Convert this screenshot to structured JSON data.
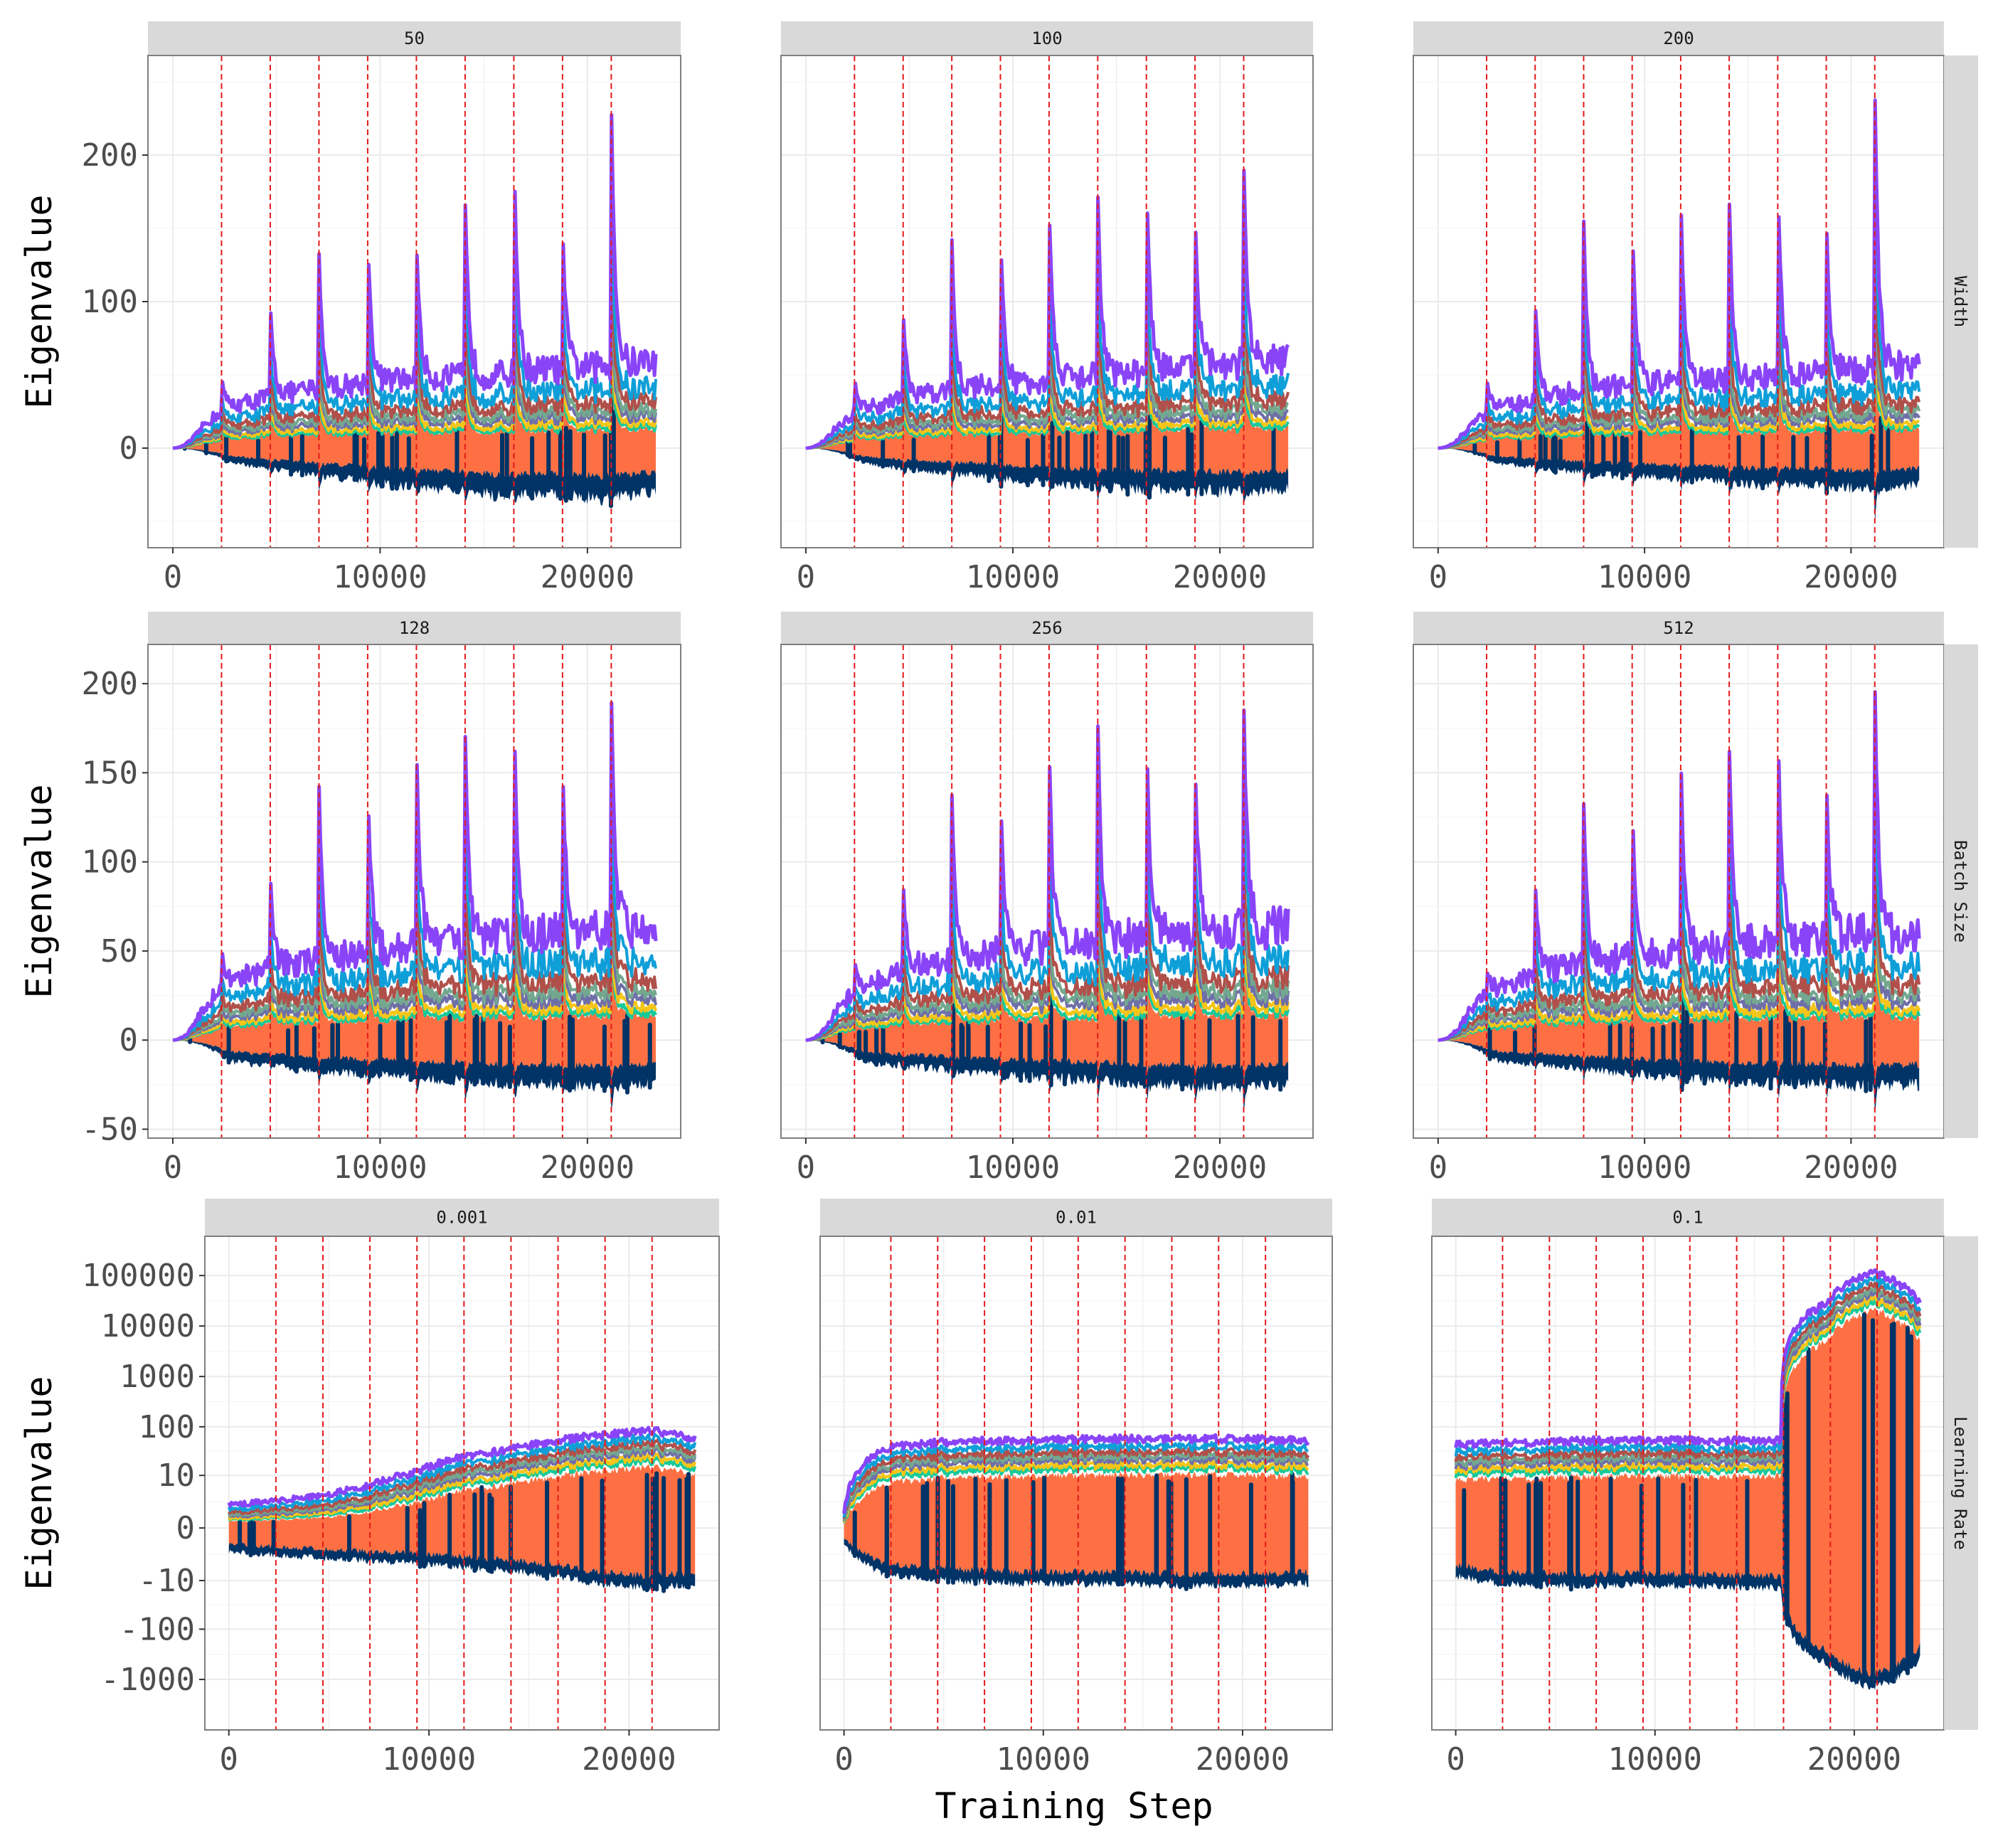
{
  "figure": {
    "xlabel": "Training Step",
    "ylabel": "Eigenvalue"
  },
  "chart_data": {
    "type": "line",
    "facet_layout": "3x3 grid, rows = hyperparameter swept, columns = value",
    "row_labels": [
      "Width",
      "Batch Size",
      "Learning Rate"
    ],
    "xlabel": "Training Step",
    "ylabel": "Eigenvalue",
    "x_ticks": [
      0,
      10000,
      20000
    ],
    "xlim": [
      -1200,
      24500
    ],
    "grid": true,
    "restart_markers": {
      "style": "red dashed vertical lines",
      "color": "#e41a1c",
      "x": [
        2350,
        4700,
        7050,
        9400,
        11750,
        14100,
        16450,
        18800,
        21150
      ]
    },
    "series_colors": {
      "eig_1_largest": "#8a44f8",
      "eig_2": "#0f9fd8",
      "eig_3": "#b0504a",
      "eig_4": "#73a88f",
      "eig_5": "#6f6fa8",
      "eig_6": "#f5c518",
      "eig_7": "#16c99a",
      "bulk": "#fe7043",
      "eig_min_negative": "#003366"
    },
    "panels": [
      {
        "row": "Width",
        "label": "50",
        "scale": "linear",
        "ylim": [
          -68,
          268
        ],
        "y_ticks": [
          0,
          100,
          200
        ],
        "show_y_ticks": true,
        "summary": {
          "baseline_top": [
            0,
            30,
            40,
            45,
            50,
            52,
            54,
            58,
            60,
            65
          ],
          "spike_peaks": [
            50,
            100,
            135,
            153,
            148,
            172,
            219,
            155,
            242
          ],
          "negative_floor": [
            0,
            -10,
            -15,
            -20,
            -25,
            -28,
            -32,
            -30,
            -35,
            -30
          ],
          "negative_spikes": [
            -10,
            -20,
            -30,
            -35,
            -35,
            -38,
            -45,
            -38,
            -40
          ]
        }
      },
      {
        "row": "Width",
        "label": "100",
        "scale": "linear",
        "ylim": [
          -68,
          268
        ],
        "y_ticks": [
          0,
          100,
          200
        ],
        "show_y_ticks": false,
        "summary": {
          "baseline_top": [
            0,
            28,
            38,
            45,
            48,
            52,
            55,
            60,
            62,
            65
          ],
          "spike_peaks": [
            50,
            95,
            145,
            153,
            172,
            178,
            200,
            165,
            200
          ],
          "negative_floor": [
            0,
            -10,
            -15,
            -18,
            -22,
            -25,
            -28,
            -28,
            -30,
            -28
          ],
          "negative_spikes": [
            -10,
            -20,
            -30,
            -33,
            -35,
            -38,
            -42,
            -38,
            -40
          ]
        }
      },
      {
        "row": "Width",
        "label": "200",
        "scale": "linear",
        "ylim": [
          -68,
          268
        ],
        "y_ticks": [
          0,
          100,
          200
        ],
        "show_y_ticks": false,
        "summary": {
          "baseline_top": [
            0,
            28,
            38,
            44,
            48,
            50,
            52,
            55,
            58,
            62
          ],
          "spike_peaks": [
            50,
            102,
            158,
            165,
            180,
            173,
            198,
            165,
            252
          ],
          "negative_floor": [
            0,
            -10,
            -14,
            -18,
            -20,
            -22,
            -25,
            -25,
            -28,
            -25
          ],
          "negative_spikes": [
            -10,
            -20,
            -28,
            -30,
            -32,
            -35,
            -38,
            -35,
            -55
          ]
        }
      },
      {
        "row": "Batch Size",
        "label": "128",
        "scale": "linear",
        "ylim": [
          -55,
          222
        ],
        "y_ticks": [
          -50,
          0,
          50,
          100,
          150,
          200
        ],
        "show_y_ticks": true,
        "summary": {
          "baseline_top": [
            0,
            35,
            45,
            50,
            55,
            60,
            62,
            65,
            68,
            68
          ],
          "spike_peaks": [
            52,
            94,
            145,
            151,
            171,
            177,
            200,
            157,
            200
          ],
          "negative_floor": [
            0,
            -12,
            -15,
            -18,
            -20,
            -22,
            -24,
            -25,
            -26,
            -25
          ],
          "negative_spikes": [
            -12,
            -18,
            -27,
            -29,
            -33,
            -37,
            -42,
            -35,
            -42
          ]
        }
      },
      {
        "row": "Batch Size",
        "label": "256",
        "scale": "linear",
        "ylim": [
          -55,
          222
        ],
        "y_ticks": [
          -50,
          0,
          50,
          100,
          150,
          200
        ],
        "show_y_ticks": false,
        "summary": {
          "baseline_top": [
            0,
            32,
            45,
            50,
            55,
            58,
            62,
            65,
            68,
            68
          ],
          "spike_peaks": [
            45,
            90,
            140,
            145,
            170,
            183,
            188,
            162,
            195
          ],
          "negative_floor": [
            0,
            -12,
            -15,
            -18,
            -20,
            -22,
            -24,
            -25,
            -26,
            -25
          ],
          "negative_spikes": [
            -12,
            -18,
            -25,
            -28,
            -33,
            -35,
            -40,
            -38,
            -44
          ]
        }
      },
      {
        "row": "Batch Size",
        "label": "512",
        "scale": "linear",
        "ylim": [
          -55,
          222
        ],
        "y_ticks": [
          -50,
          0,
          50,
          100,
          150,
          200
        ],
        "show_y_ticks": false,
        "summary": {
          "baseline_top": [
            0,
            30,
            42,
            48,
            52,
            56,
            60,
            62,
            65,
            62
          ],
          "spike_peaks": [
            42,
            90,
            135,
            140,
            168,
            168,
            192,
            155,
            207
          ],
          "negative_floor": [
            0,
            -12,
            -14,
            -17,
            -20,
            -22,
            -24,
            -24,
            -26,
            -25
          ],
          "negative_spikes": [
            -10,
            -18,
            -25,
            -28,
            -30,
            -33,
            -38,
            -37,
            -44
          ]
        }
      },
      {
        "row": "Learning Rate",
        "label": "0.001",
        "scale": "symlog",
        "y_ticks": [
          "-1000",
          "-100",
          "-10",
          "0",
          "10",
          "100",
          "1000",
          "10000",
          "100000"
        ],
        "show_y_ticks": true,
        "summary": {
          "top_curve": [
            2,
            2.5,
            3.5,
            6,
            12,
            25,
            35,
            55,
            70,
            90,
            60
          ],
          "negative_floor": [
            -2,
            -2.5,
            -3,
            -3.5,
            -4,
            -5,
            -6,
            -8,
            -12,
            -15,
            -12
          ]
        }
      },
      {
        "row": "Learning Rate",
        "label": "0.01",
        "scale": "symlog",
        "y_ticks": [
          "-1000",
          "-100",
          "-10",
          "0",
          "10",
          "100",
          "1000",
          "10000",
          "100000"
        ],
        "show_y_ticks": false,
        "summary": {
          "top_curve": [
            1,
            40,
            50,
            55,
            55,
            58,
            60,
            60,
            60,
            58,
            55
          ],
          "negative_floor": [
            -1,
            -8,
            -10,
            -11,
            -12,
            -12,
            -12,
            -13,
            -13,
            -13,
            -12
          ]
        }
      },
      {
        "row": "Learning Rate",
        "label": "0.1",
        "scale": "symlog",
        "y_ticks": [
          "-1000",
          "-100",
          "-10",
          "0",
          "10",
          "100",
          "1000",
          "10000",
          "100000"
        ],
        "show_y_ticks": false,
        "summary": {
          "top_curve": [
            45,
            50,
            52,
            55,
            55,
            55,
            55,
            55,
            30000,
            120000,
            30000
          ],
          "negative_floor": [
            -8,
            -12,
            -13,
            -13,
            -13,
            -13,
            -14,
            -15,
            -500,
            -1500,
            -400
          ]
        }
      }
    ]
  }
}
